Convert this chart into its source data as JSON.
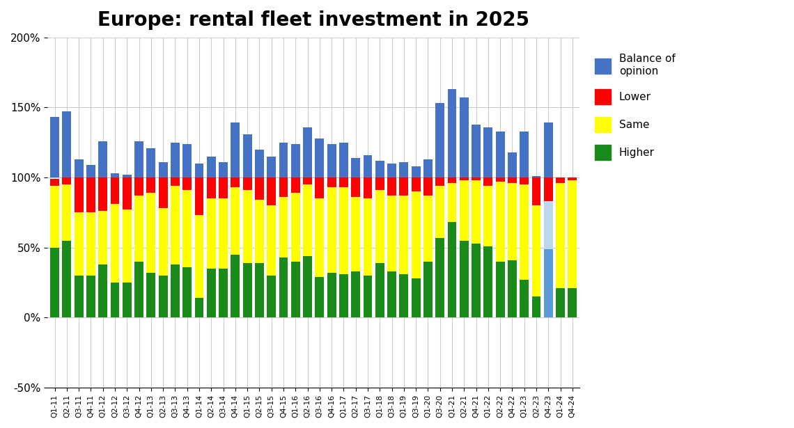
{
  "title": "Europe: rental fleet investment in 2025",
  "categories": [
    "Q1-11",
    "Q2-11",
    "Q3-11",
    "Q4-11",
    "Q1-12",
    "Q2-12",
    "Q3-12",
    "Q4-12",
    "Q1-13",
    "Q2-13",
    "Q3-13",
    "Q4-13",
    "Q1-14",
    "Q2-14",
    "Q3-14",
    ".Q4-14",
    "Q1-15",
    "Q2-15",
    "Q3-15",
    "Q4-15",
    "Q1-16",
    "Q2-16",
    "Q3-16",
    "Q4-16",
    "Q1-17",
    "Q2-17",
    "Q3-17",
    "Q1-18",
    "Q3-18",
    "Q1-19",
    "Q3-19",
    "Q1-20",
    "Q3-20",
    "Q1-21",
    "Q2-21",
    "Q4-21",
    "Q1-22",
    "Q2-22",
    "Q4-22",
    "Q1-23",
    "Q2-23",
    "Q4-23",
    "Q1-24",
    "Q4-24"
  ],
  "higher": [
    50,
    55,
    30,
    30,
    38,
    25,
    25,
    40,
    32,
    30,
    38,
    36,
    14,
    35,
    35,
    45,
    39,
    39,
    30,
    43,
    40,
    44,
    29,
    32,
    31,
    33,
    30,
    39,
    33,
    31,
    28,
    40,
    57,
    68,
    55,
    53,
    51,
    40,
    41,
    27,
    15,
    49,
    21,
    21
  ],
  "same": [
    44,
    40,
    45,
    45,
    38,
    56,
    52,
    47,
    57,
    48,
    56,
    55,
    59,
    50,
    50,
    48,
    52,
    45,
    50,
    43,
    49,
    51,
    56,
    61,
    62,
    53,
    55,
    52,
    54,
    56,
    62,
    47,
    37,
    28,
    43,
    45,
    43,
    57,
    55,
    68,
    65,
    34,
    75,
    77
  ],
  "lower": [
    5,
    5,
    25,
    25,
    24,
    19,
    23,
    13,
    11,
    22,
    6,
    9,
    27,
    15,
    15,
    7,
    9,
    16,
    20,
    14,
    11,
    5,
    15,
    7,
    7,
    14,
    15,
    9,
    13,
    13,
    10,
    13,
    6,
    4,
    2,
    2,
    6,
    3,
    4,
    5,
    20,
    17,
    4,
    2
  ],
  "balance_top": [
    143,
    147,
    113,
    109,
    126,
    103,
    102,
    126,
    121,
    111,
    125,
    124,
    110,
    115,
    111,
    139,
    131,
    120,
    115,
    125,
    124,
    136,
    128,
    124,
    125,
    114,
    116,
    112,
    110,
    111,
    108,
    113,
    153,
    163,
    157,
    138,
    136,
    133,
    118,
    133,
    101,
    139,
    100,
    100
  ],
  "highlight_idx": 41,
  "bar_color_higher": "#1a8a1a",
  "bar_color_same": "#ffff00",
  "bar_color_lower": "#ff0000",
  "bar_color_balance": "#4472c4",
  "highlight_bar_color": "#5b9bd5",
  "ylim": [
    -50,
    200
  ],
  "yticks": [
    -50,
    0,
    50,
    100,
    150,
    200
  ],
  "yticklabels": [
    "-50%",
    "0%",
    "50%",
    "100%",
    "150%",
    "200%"
  ],
  "background_color": "#ffffff",
  "grid_color": "#cccccc"
}
